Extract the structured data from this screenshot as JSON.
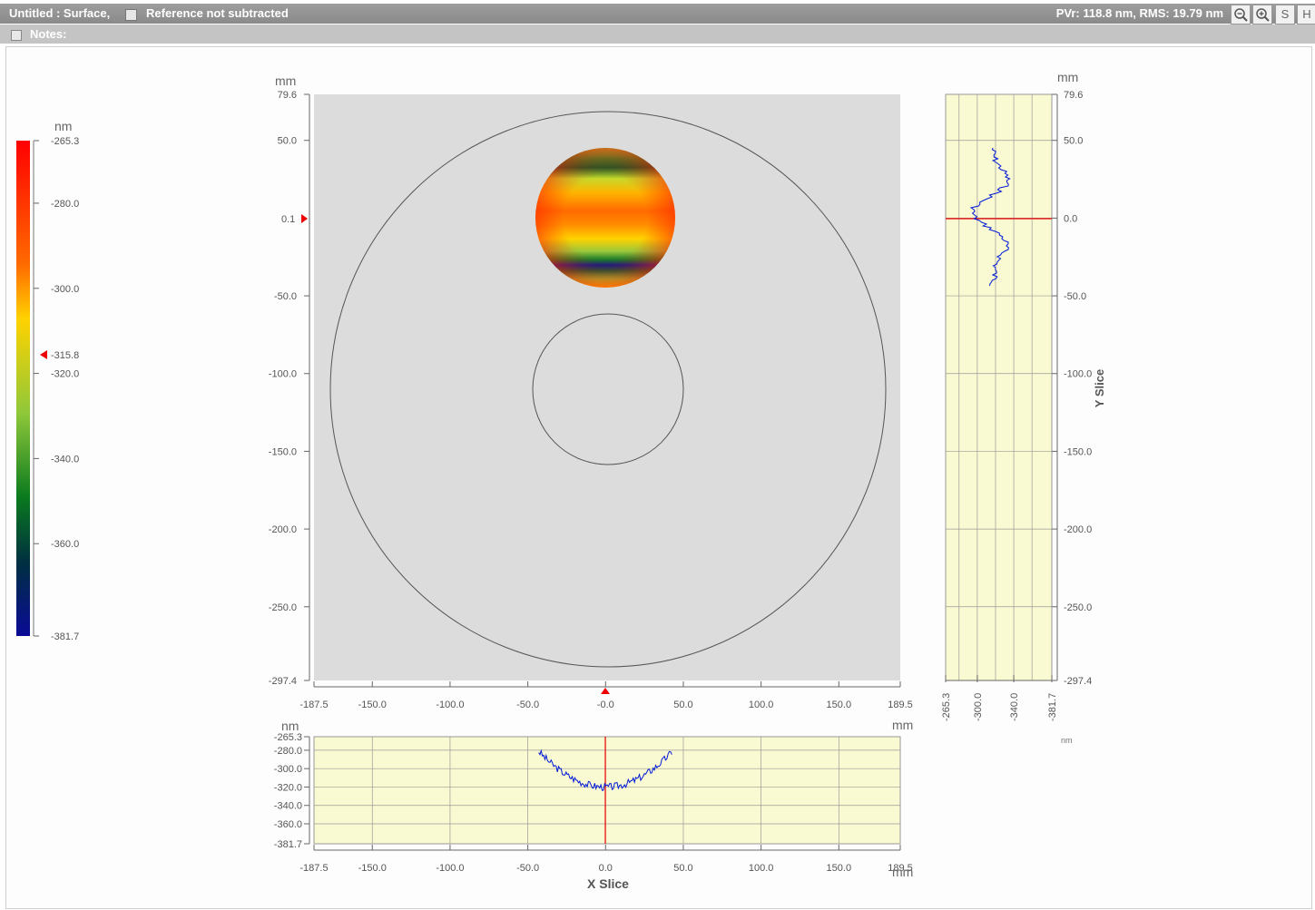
{
  "titlebar": {
    "title": "Untitled : Surface,",
    "reference": "Reference not subtracted",
    "stats": "PVr: 118.8 nm, RMS: 19.79 nm",
    "buttons": [
      "S",
      "H"
    ]
  },
  "notes": {
    "label": "Notes:"
  },
  "colorbar": {
    "unit": "nm",
    "ticks": [
      "-265.3",
      "-280.0",
      "-300.0",
      "-320.0",
      "-340.0",
      "-360.0",
      "-381.7"
    ],
    "marker": "-315.8",
    "colors": [
      "#ff0000",
      "#ff6a00",
      "#ffd200",
      "#8fc83a",
      "#0a7a1e",
      "#003040",
      "#0a0a96"
    ]
  },
  "main_plot": {
    "unit_y": "mm",
    "y_ticks": [
      "79.6",
      "50.0",
      "-50.0",
      "-100.0",
      "-150.0",
      "-200.0",
      "-250.0",
      "-297.4"
    ],
    "y_marker": "0.1",
    "x_ticks": [
      "-187.5",
      "-150.0",
      "-100.0",
      "-50.0",
      "-0.0",
      "50.0",
      "100.0",
      "150.0",
      "189.5"
    ]
  },
  "y_slice": {
    "title": "Y Slice",
    "unit_y": "mm",
    "y_ticks": [
      "79.6",
      "50.0",
      "0.0",
      "-50.0",
      "-100.0",
      "-150.0",
      "-200.0",
      "-250.0",
      "-297.4"
    ],
    "value_ticks": [
      "-265.3",
      "-300.0",
      "-340.0",
      "-381.7"
    ],
    "value_unit": "nm"
  },
  "x_slice": {
    "title": "X Slice",
    "unit_y": "nm",
    "unit_top_right": "mm",
    "unit_x": "mm",
    "y_ticks": [
      "-265.3",
      "-280.0",
      "-300.0",
      "-320.0",
      "-340.0",
      "-360.0",
      "-381.7"
    ],
    "x_ticks": [
      "-187.5",
      "-150.0",
      "-100.0",
      "-50.0",
      "0.0",
      "50.0",
      "100.0",
      "150.0",
      "189.5"
    ]
  }
}
